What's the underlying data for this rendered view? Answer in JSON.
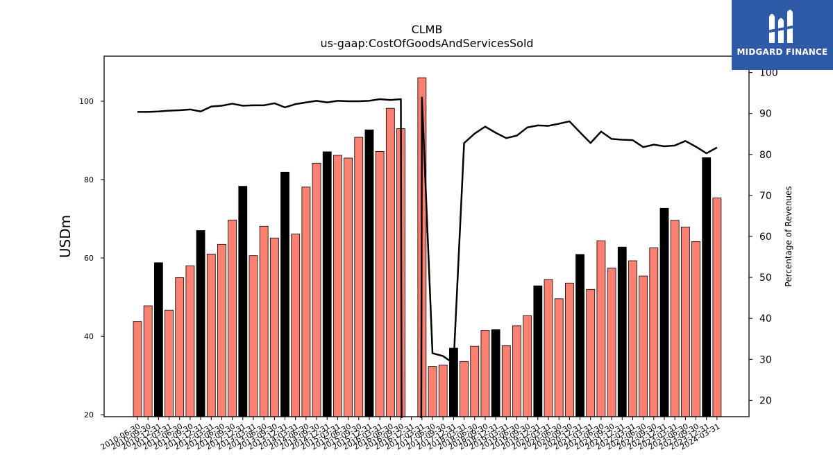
{
  "chart_data": {
    "type": "bar",
    "title": "CLMB",
    "subtitle": "us-gaap:CostOfGoodsAndServicesSold",
    "ylabel": "USDm",
    "y2label": "Percentage of Revenues",
    "ylim": [
      19.5,
      111.5
    ],
    "y2lim": [
      16,
      104
    ],
    "yticks": [
      20,
      40,
      60,
      80,
      100
    ],
    "y2ticks": [
      20,
      30,
      40,
      50,
      60,
      70,
      80,
      90,
      100
    ],
    "categories": [
      "2010-06-30",
      "2010-09-30",
      "2010-12-31",
      "2011-03-31",
      "2011-06-30",
      "2011-09-30",
      "2011-12-31",
      "2012-03-31",
      "2012-06-30",
      "2012-09-30",
      "2012-12-31",
      "2013-03-31",
      "2013-06-30",
      "2013-09-30",
      "2013-12-31",
      "2014-03-31",
      "2014-06-30",
      "2014-09-30",
      "2014-12-31",
      "2015-03-31",
      "2015-06-30",
      "2015-09-30",
      "2015-12-31",
      "2016-03-31",
      "2016-06-30",
      "2016-09-30",
      "2016-12-31",
      "2017-03-31",
      "2017-06-30",
      "2017-09-30",
      "2017-12-31",
      "2018-03-31",
      "2018-06-30",
      "2018-09-30",
      "2018-12-31",
      "2019-03-31",
      "2019-06-30",
      "2019-09-30",
      "2019-12-31",
      "2020-03-31",
      "2020-06-30",
      "2020-09-30",
      "2020-12-31",
      "2021-03-31",
      "2021-06-30",
      "2021-09-30",
      "2021-12-31",
      "2022-03-31",
      "2022-06-30",
      "2022-09-30",
      "2022-12-31",
      "2023-03-31",
      "2023-06-30",
      "2023-09-30",
      "2023-12-31",
      "2024-03-31"
    ],
    "xticklabels": [
      "2010-06-30",
      "2010-09-30",
      "2010-12-31",
      "2011-03-31",
      "2011-06-30",
      "2011-09-30",
      "2011-12-31",
      "2012-03-31",
      "2012-06-30",
      "2012-09-30",
      "2012-12-31",
      "2013-03-31",
      "2013-06-30",
      "2013-09-30",
      "2013-12-31",
      "2014-03-31",
      "2014-06-30",
      "2014-09-30",
      "2014-12-31",
      "2015-03-31",
      "2015-06-30",
      "2015-09-30",
      "2015-12-31",
      "2016-03-31",
      "2016-06-30",
      "2016-09-30",
      "2016-12-31",
      "2017-03-31",
      "2017-06-30",
      "2017-09-30",
      "2017-12-31",
      "2018-03-31",
      "2018-06-30",
      "2018-09-30",
      "2018-12-31",
      "2019-03-31",
      "2019-06-30",
      "2019-09-30",
      "2019-12-31",
      "2020-03-31",
      "2020-06-30",
      "2020-09-30",
      "2020-12-31",
      "2021-03-31",
      "2021-06-30",
      "2021-09-30",
      "2021-12-31",
      "2022-03-31",
      "2022-06-30",
      "2022-09-30",
      "2022-12-31",
      "2023-03-31",
      "2023-06-30",
      "2023-09-30",
      "2023-12-31",
      "2024-03-31"
    ],
    "values": [
      43.8,
      47.8,
      58.8,
      46.7,
      55.0,
      58.0,
      67.0,
      61.0,
      63.5,
      69.7,
      78.3,
      60.6,
      68.1,
      65.1,
      81.9,
      66.1,
      78.1,
      84.2,
      87.1,
      86.2,
      85.5,
      90.8,
      92.7,
      87.2,
      98.2,
      93.0,
      null,
      106.0,
      32.3,
      32.7,
      37.0,
      33.6,
      37.5,
      41.5,
      41.7,
      37.6,
      42.7,
      45.3,
      52.9,
      54.5,
      49.6,
      53.6,
      60.9,
      52.0,
      64.4,
      57.4,
      62.8,
      59.3,
      55.4,
      62.6,
      72.7,
      69.6,
      67.9,
      64.2,
      85.6,
      75.3
    ],
    "highlight": [
      false,
      false,
      true,
      false,
      false,
      false,
      true,
      false,
      false,
      false,
      true,
      false,
      false,
      false,
      true,
      false,
      false,
      false,
      true,
      false,
      false,
      false,
      true,
      false,
      false,
      false,
      false,
      false,
      false,
      false,
      true,
      false,
      false,
      false,
      true,
      false,
      false,
      false,
      true,
      false,
      false,
      false,
      true,
      false,
      false,
      false,
      true,
      false,
      false,
      false,
      true,
      false,
      false,
      false,
      true,
      false
    ],
    "pct_of_revenue": [
      90.4,
      90.4,
      90.5,
      90.7,
      90.8,
      91.0,
      90.5,
      91.7,
      91.9,
      92.4,
      91.9,
      92.0,
      92.0,
      92.5,
      91.5,
      92.3,
      92.7,
      93.1,
      92.7,
      93.1,
      93.0,
      93.0,
      93.1,
      93.5,
      93.3,
      93.5,
      null,
      93.9,
      31.5,
      30.8,
      29.0,
      82.8,
      85.1,
      86.8,
      85.3,
      84.0,
      84.6,
      86.6,
      87.1,
      87.0,
      87.5,
      88.1,
      85.4,
      82.8,
      85.6,
      83.8,
      83.6,
      83.5,
      81.8,
      82.4,
      82.0,
      82.2,
      83.3,
      81.9,
      80.3,
      81.7
    ],
    "bar_color": "#fa8072",
    "highlight_color": "#000000",
    "line_color": "#000000",
    "grid": false
  },
  "logo": {
    "text": "MIDGARD FINANCE",
    "background": "#2f5aa8"
  }
}
